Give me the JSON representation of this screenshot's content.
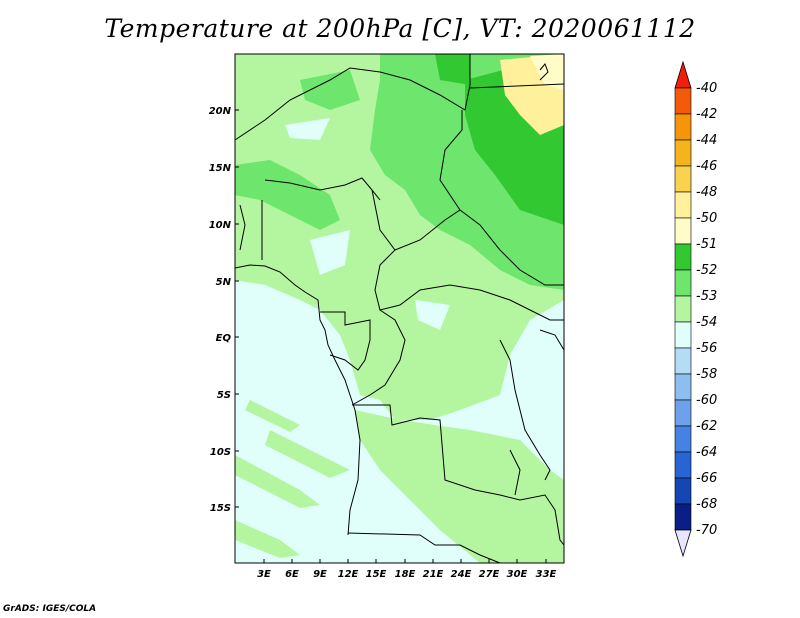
{
  "title": "Temperature at 200hPa [C], VT: 2020061112",
  "credit": "GrADS: IGES/COLA",
  "map": {
    "lat_labels": [
      "20N",
      "15N",
      "10N",
      "5N",
      "EQ",
      "5S",
      "10S",
      "15S"
    ],
    "lon_labels": [
      "3E",
      "6E",
      "9E",
      "12E",
      "15E",
      "18E",
      "21E",
      "24E",
      "27E",
      "30E",
      "33E"
    ]
  },
  "colorbar": {
    "labels": [
      "-40",
      "-42",
      "-44",
      "-46",
      "-48",
      "-50",
      "-51",
      "-52",
      "-53",
      "-54",
      "-56",
      "-58",
      "-60",
      "-62",
      "-64",
      "-66",
      "-68",
      "-70"
    ],
    "colors": [
      "#f01e0a",
      "#f55a0a",
      "#f5960a",
      "#f5b41e",
      "#fad250",
      "#fff09b",
      "#fffcc8",
      "#32c832",
      "#6ee66e",
      "#b4f5a0",
      "#e1fffa",
      "#b4dcf5",
      "#8cbef0",
      "#6ea0eb",
      "#4682e1",
      "#2864d2",
      "#1446b4",
      "#0a1e87",
      "#000a5a",
      "#e6e6ff"
    ]
  }
}
